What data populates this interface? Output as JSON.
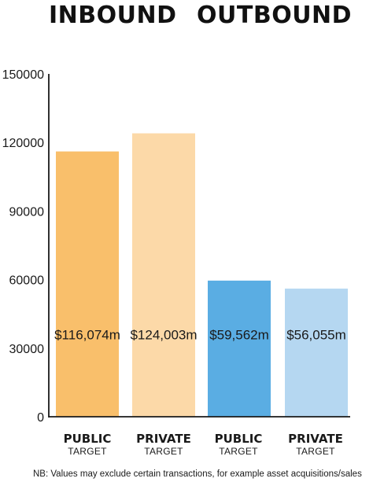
{
  "headings": {
    "inbound": "INBOUND",
    "outbound": "OUTBOUND"
  },
  "chart_data": {
    "type": "bar",
    "categories": [
      {
        "label": "PUBLIC",
        "sublabel": "TARGET"
      },
      {
        "label": "PRIVATE",
        "sublabel": "TARGET"
      },
      {
        "label": "PUBLIC",
        "sublabel": "TARGET"
      },
      {
        "label": "PRIVATE",
        "sublabel": "TARGET"
      }
    ],
    "values": [
      116074,
      124003,
      59562,
      56055
    ],
    "data_labels": [
      "$116,074m",
      "$124,003m",
      "$59,562m",
      "$56,055m"
    ],
    "groups": [
      "INBOUND",
      "INBOUND",
      "OUTBOUND",
      "OUTBOUND"
    ],
    "colors": [
      "#f9bf6b",
      "#fcd9a8",
      "#5aade3",
      "#b5d7f1"
    ],
    "ylim": [
      0,
      150000
    ],
    "yticks": [
      "0",
      "30000",
      "60000",
      "90000",
      "120000",
      "150000"
    ],
    "grid": false,
    "legend": "none"
  },
  "footnote": "NB: Values may exclude certain transactions, for example asset acquisitions/sales"
}
